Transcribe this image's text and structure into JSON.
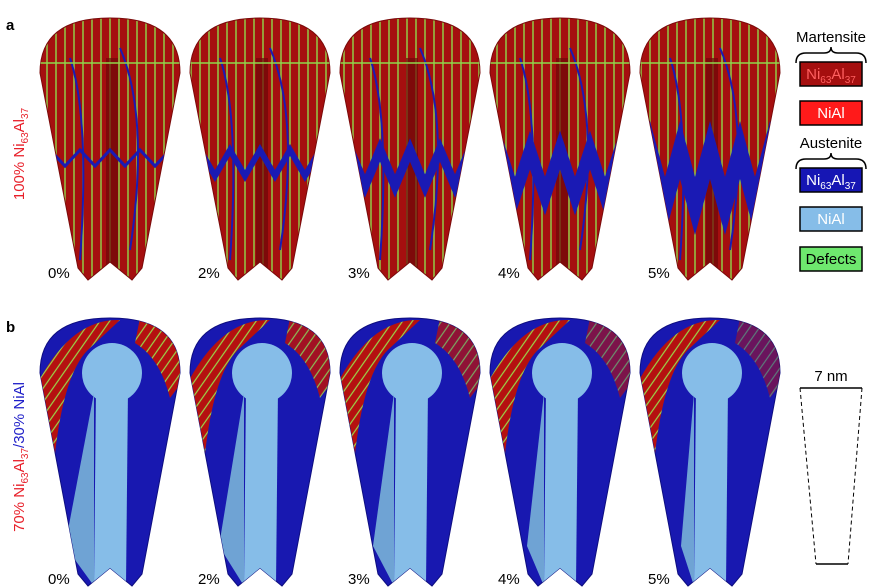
{
  "panels": [
    {
      "label": "a",
      "row_label": [
        {
          "text": "100% Ni",
          "color": "#e8202a"
        },
        {
          "text": "63",
          "color": "#e8202a",
          "sub": true
        },
        {
          "text": "Al",
          "color": "#e8202a"
        },
        {
          "text": "37",
          "color": "#e8202a",
          "sub": true
        }
      ],
      "strains": [
        "0%",
        "2%",
        "3%",
        "4%",
        "5%"
      ]
    },
    {
      "label": "b",
      "row_label": [
        {
          "text": "70% Ni",
          "color": "#e8202a"
        },
        {
          "text": "63",
          "color": "#e8202a",
          "sub": true
        },
        {
          "text": "Al",
          "color": "#e8202a"
        },
        {
          "text": "37",
          "color": "#e8202a",
          "sub": true
        },
        {
          "text": "/30% NiAl",
          "color": "#1e1ec8"
        }
      ],
      "strains": [
        "0%",
        "2%",
        "3%",
        "4%",
        "5%"
      ]
    }
  ],
  "legend": {
    "martensite": {
      "title": "Martensite",
      "items": [
        {
          "parts": [
            {
              "text": "Ni"
            },
            {
              "text": "63",
              "sub": true
            },
            {
              "text": "Al"
            },
            {
              "text": "37",
              "sub": true
            }
          ],
          "color": "#a50f0f",
          "text_color": "#ff6060"
        },
        {
          "parts": [
            {
              "text": "NiAl"
            }
          ],
          "color": "#ff1a1a",
          "text_color": "#ffffff"
        }
      ]
    },
    "austenite": {
      "title": "Austenite",
      "items": [
        {
          "parts": [
            {
              "text": "Ni"
            },
            {
              "text": "63",
              "sub": true
            },
            {
              "text": "Al"
            },
            {
              "text": "37",
              "sub": true
            }
          ],
          "color": "#1616b4",
          "text_color": "#ffffff"
        },
        {
          "parts": [
            {
              "text": "NiAl"
            }
          ],
          "color": "#86bde8",
          "text_color": "#ffffff"
        }
      ]
    },
    "defects": {
      "parts": [
        {
          "text": "Defects"
        }
      ],
      "color": "#6ee86e",
      "text_color": "#000000"
    }
  },
  "scale_bar": "7 nm"
}
